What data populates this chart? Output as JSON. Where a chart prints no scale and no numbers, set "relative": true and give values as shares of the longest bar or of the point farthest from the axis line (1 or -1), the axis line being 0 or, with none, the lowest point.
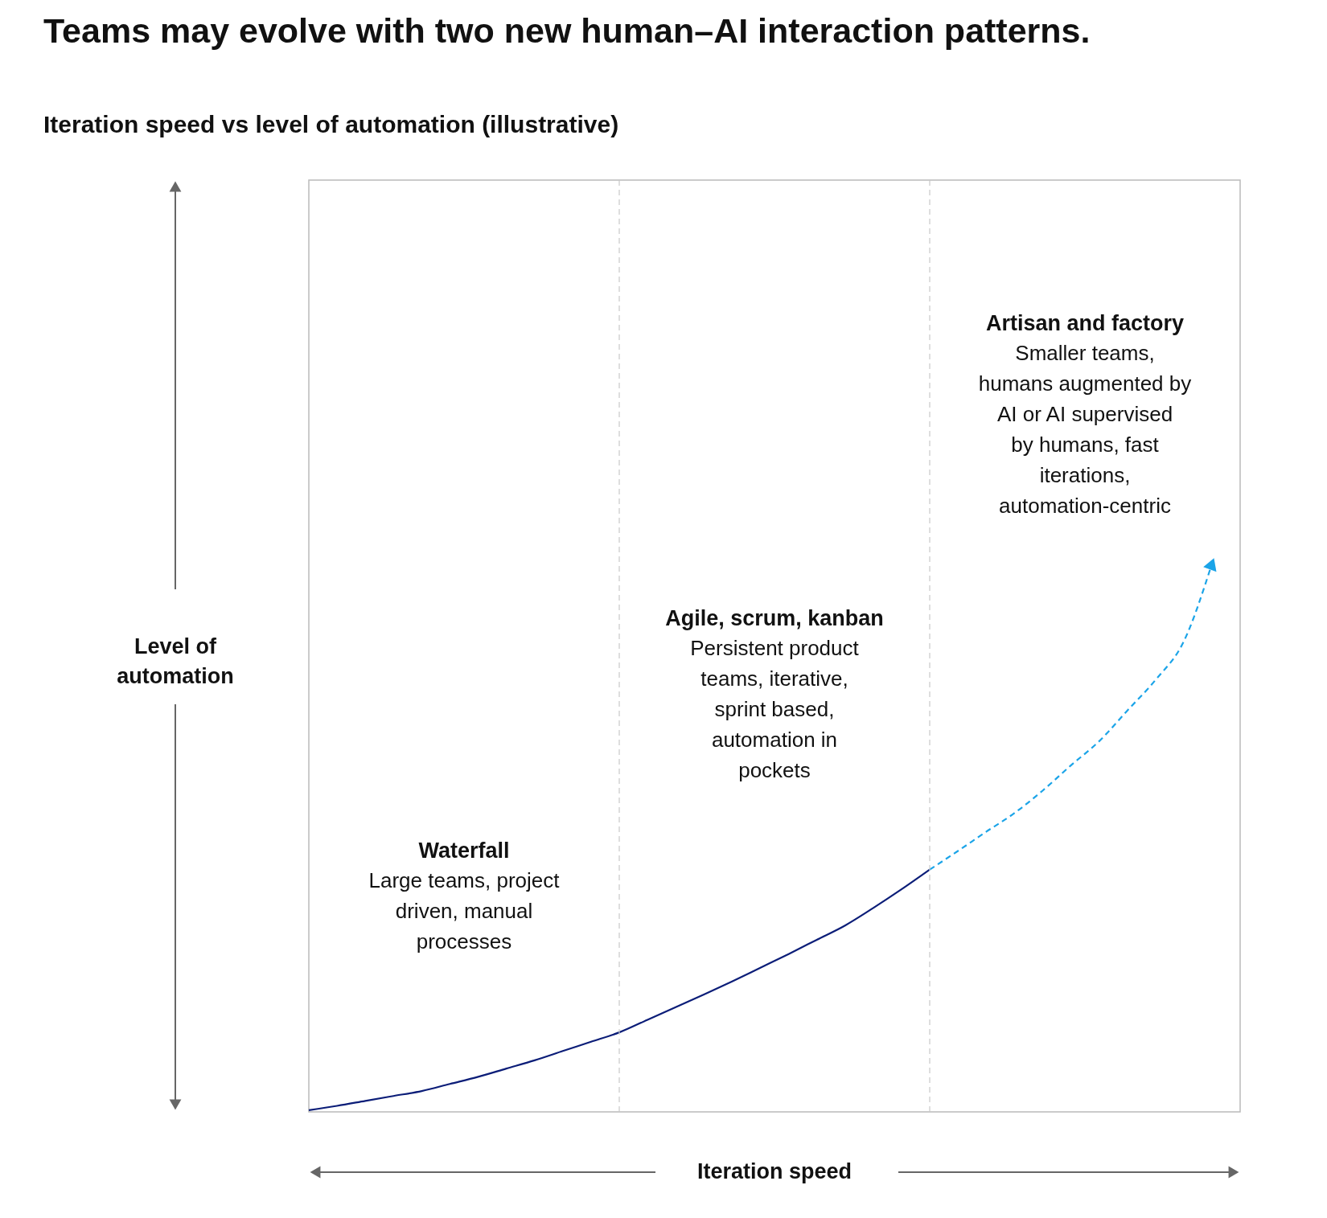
{
  "chart_data": {
    "type": "line",
    "title": "Teams may evolve with two new human–AI interaction patterns.",
    "subtitle": "Iteration speed vs level of automation (illustrative)",
    "xlabel": "Iteration speed",
    "ylabel": "Level of automation",
    "relative": true,
    "categories": [
      null,
      null,
      null,
      null,
      null,
      null,
      null,
      null,
      null,
      null,
      null,
      null,
      null,
      null,
      null,
      null,
      null,
      null,
      null,
      null,
      null,
      null,
      null,
      null,
      null,
      null,
      null,
      null,
      null,
      null,
      null,
      null,
      null,
      null
    ],
    "series": [
      {
        "color": "#0b1d78",
        "line_style": "solid",
        "values": [
          0.003,
          0.011,
          0.02,
          0.029,
          0.038,
          0.051,
          0.064,
          0.079,
          0.094,
          0.111,
          0.128,
          0.145,
          0.168,
          0.191,
          0.214,
          0.238,
          0.263,
          0.288,
          0.314,
          0.34,
          0.372,
          0.406,
          0.442,
          null,
          null,
          null,
          null,
          null,
          null,
          null,
          null,
          null,
          null,
          null
        ]
      },
      {
        "color": "#1ba4e8",
        "line_style": "dashed",
        "values": [
          null,
          null,
          null,
          null,
          null,
          null,
          null,
          null,
          null,
          null,
          null,
          null,
          null,
          null,
          null,
          null,
          null,
          null,
          null,
          null,
          null,
          null,
          0.442,
          0.476,
          0.511,
          0.545,
          0.586,
          0.632,
          0.676,
          0.732,
          0.788,
          0.858,
          1.0,
          null
        ]
      }
    ],
    "ref_lines": [
      {
        "axis": "x",
        "color": "#c8c8c8",
        "line_style": "dashed"
      },
      {
        "axis": "x",
        "color": "#c8c8c8",
        "line_style": "dashed"
      }
    ],
    "annotations": [
      "Waterfall",
      "Large teams, project driven, manual processes",
      "Agile, scrum, kanban",
      "Persistent product teams, iterative, sprint based, automation in pockets",
      "Artisan and factory",
      "Smaller teams, humans augmented by AI or AI supervised by humans, fast iterations, automation-centric"
    ]
  }
}
